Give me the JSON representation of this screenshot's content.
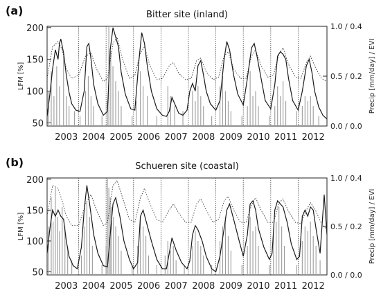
{
  "chart_data": [
    {
      "type": "line",
      "panel_label": "(a)",
      "title": "Bitter site (inland)",
      "ylabel": "LFM [%]",
      "ylabel_right": "Precip [mm/day] / EVI",
      "ylim": [
        45,
        202
      ],
      "xlim": [
        2002.4,
        2012.6
      ],
      "y_ticks": [
        "50",
        "100",
        "150",
        "200"
      ],
      "right_ticks": [
        "0.0 / 0.0",
        "0.5 / 0.2",
        "1.0 / 0.4"
      ],
      "x_ticks": [
        "2003",
        "2004",
        "2005",
        "2006",
        "2007",
        "2008",
        "2009",
        "2010",
        "2011",
        "2012"
      ],
      "year_separators": [
        2003.55,
        2004.55,
        2005.55,
        2006.55,
        2007.55,
        2008.55,
        2009.55,
        2010.55,
        2011.55
      ],
      "grid": false,
      "series": [
        {
          "role": "LFM (solid)",
          "x": [
            2002.4,
            2002.5,
            2002.6,
            2002.7,
            2002.8,
            2002.85,
            2002.9,
            2003.0,
            2003.1,
            2003.2,
            2003.3,
            2003.45,
            2003.6,
            2003.75,
            2003.85,
            2003.92,
            2004.0,
            2004.1,
            2004.25,
            2004.45,
            2004.6,
            2004.7,
            2004.8,
            2004.9,
            2005.0,
            2005.1,
            2005.25,
            2005.45,
            2005.6,
            2005.75,
            2005.85,
            2005.95,
            2006.05,
            2006.2,
            2006.4,
            2006.6,
            2006.75,
            2006.85,
            2006.95,
            2007.05,
            2007.2,
            2007.35,
            2007.5,
            2007.6,
            2007.7,
            2007.8,
            2007.9,
            2008.0,
            2008.1,
            2008.2,
            2008.35,
            2008.55,
            2008.7,
            2008.85,
            2008.95,
            2009.05,
            2009.2,
            2009.35,
            2009.55,
            2009.7,
            2009.85,
            2009.95,
            2010.05,
            2010.2,
            2010.35,
            2010.55,
            2010.7,
            2010.8,
            2010.9,
            2011.0,
            2011.1,
            2011.2,
            2011.35,
            2011.55,
            2011.7,
            2011.85,
            2011.95,
            2012.05,
            2012.15,
            2012.3,
            2012.45,
            2012.6
          ],
          "y": [
            60,
            95,
            135,
            165,
            150,
            175,
            182,
            160,
            125,
            98,
            80,
            70,
            68,
            100,
            170,
            175,
            150,
            110,
            80,
            62,
            68,
            165,
            200,
            185,
            170,
            130,
            95,
            72,
            70,
            150,
            192,
            175,
            140,
            100,
            72,
            62,
            60,
            68,
            90,
            80,
            65,
            62,
            70,
            100,
            112,
            100,
            140,
            148,
            125,
            100,
            80,
            70,
            85,
            150,
            178,
            165,
            125,
            95,
            78,
            120,
            168,
            175,
            155,
            120,
            85,
            72,
            110,
            155,
            162,
            158,
            150,
            120,
            85,
            70,
            100,
            140,
            150,
            130,
            100,
            75,
            62,
            56
          ]
        },
        {
          "role": "EVI (dotted)",
          "x": [
            2002.4,
            2002.6,
            2002.8,
            2002.95,
            2003.1,
            2003.3,
            2003.55,
            2003.8,
            2004.0,
            2004.2,
            2004.45,
            2004.6,
            2004.8,
            2004.95,
            2005.15,
            2005.4,
            2005.6,
            2005.8,
            2005.95,
            2006.15,
            2006.4,
            2006.6,
            2006.85,
            2007.0,
            2007.2,
            2007.45,
            2007.65,
            2007.85,
            2008.0,
            2008.2,
            2008.45,
            2008.65,
            2008.85,
            2009.0,
            2009.2,
            2009.45,
            2009.65,
            2009.85,
            2010.0,
            2010.2,
            2010.45,
            2010.65,
            2010.85,
            2011.0,
            2011.2,
            2011.45,
            2011.65,
            2011.85,
            2012.0,
            2012.2,
            2012.4,
            2012.6
          ],
          "y": [
            120,
            170,
            178,
            165,
            135,
            120,
            125,
            155,
            160,
            135,
            115,
            120,
            175,
            185,
            150,
            120,
            125,
            160,
            170,
            140,
            118,
            120,
            140,
            145,
            128,
            118,
            120,
            148,
            152,
            130,
            118,
            122,
            155,
            162,
            135,
            120,
            120,
            155,
            165,
            140,
            122,
            125,
            158,
            168,
            142,
            122,
            120,
            145,
            155,
            135,
            120,
            115
          ]
        },
        {
          "role": "Precip (grey bars)",
          "x": [
            2002.45,
            2002.55,
            2002.65,
            2002.75,
            2002.85,
            2003.0,
            2003.1,
            2003.2,
            2003.4,
            2003.6,
            2003.8,
            2003.9,
            2004.0,
            2004.1,
            2004.4,
            2004.6,
            2004.65,
            2004.72,
            2004.8,
            2004.9,
            2005.0,
            2005.1,
            2005.5,
            2005.65,
            2005.8,
            2005.9,
            2006.05,
            2006.4,
            2006.8,
            2006.9,
            2007.05,
            2007.35,
            2007.7,
            2007.8,
            2007.9,
            2008.0,
            2008.1,
            2008.4,
            2008.7,
            2008.8,
            2008.9,
            2009.0,
            2009.1,
            2009.5,
            2009.7,
            2009.8,
            2009.9,
            2010.0,
            2010.1,
            2010.5,
            2010.7,
            2010.8,
            2010.9,
            2011.0,
            2011.1,
            2011.5,
            2011.7,
            2011.8,
            2011.9,
            2012.0,
            2012.1,
            2012.3
          ],
          "y": [
            0.35,
            0.55,
            0.3,
            0.6,
            0.4,
            0.7,
            0.3,
            0.2,
            0.15,
            0.1,
            0.35,
            0.5,
            0.3,
            0.2,
            0.1,
            0.25,
            1.0,
            0.75,
            0.6,
            0.45,
            0.35,
            0.2,
            0.1,
            0.25,
            0.55,
            0.4,
            0.3,
            0.1,
            0.4,
            0.3,
            0.2,
            0.15,
            0.35,
            0.25,
            0.4,
            0.3,
            0.2,
            0.1,
            0.4,
            0.5,
            0.35,
            0.25,
            0.15,
            0.1,
            0.2,
            0.55,
            0.3,
            0.35,
            0.2,
            0.1,
            0.2,
            0.4,
            0.3,
            0.45,
            0.25,
            0.15,
            0.2,
            0.3,
            0.25,
            0.3,
            0.2,
            0.1
          ]
        }
      ]
    },
    {
      "type": "line",
      "panel_label": "(b)",
      "title": "Schueren site (coastal)",
      "ylabel": "LFM [%]",
      "ylabel_right": "Precip [mm/day] / EVI",
      "ylim": [
        45,
        202
      ],
      "xlim": [
        2002.4,
        2012.6
      ],
      "y_ticks": [
        "50",
        "100",
        "150",
        "200"
      ],
      "right_ticks": [
        "0.0 / 0.0",
        "0.5 / 0.2",
        "1.0 / 0.4"
      ],
      "x_ticks": [
        "2003",
        "2004",
        "2005",
        "2006",
        "2007",
        "2008",
        "2009",
        "2010",
        "2011",
        "2012"
      ],
      "year_separators": [
        2003.55,
        2004.55,
        2005.55,
        2006.55,
        2007.55,
        2008.55,
        2009.55,
        2010.55,
        2011.55
      ],
      "grid": false,
      "series": [
        {
          "role": "LFM (solid)",
          "x": [
            2002.4,
            2002.5,
            2002.6,
            2002.7,
            2002.8,
            2002.9,
            2003.0,
            2003.1,
            2003.2,
            2003.35,
            2003.5,
            2003.65,
            2003.75,
            2003.85,
            2003.95,
            2004.1,
            2004.25,
            2004.45,
            2004.6,
            2004.7,
            2004.8,
            2004.9,
            2005.05,
            2005.2,
            2005.4,
            2005.55,
            2005.7,
            2005.8,
            2005.9,
            2006.05,
            2006.2,
            2006.4,
            2006.6,
            2006.75,
            2006.85,
            2006.95,
            2007.1,
            2007.3,
            2007.5,
            2007.6,
            2007.7,
            2007.8,
            2007.9,
            2008.05,
            2008.2,
            2008.4,
            2008.55,
            2008.7,
            2008.85,
            2008.95,
            2009.05,
            2009.2,
            2009.4,
            2009.55,
            2009.7,
            2009.8,
            2009.9,
            2010.0,
            2010.1,
            2010.3,
            2010.5,
            2010.6,
            2010.7,
            2010.8,
            2010.9,
            2011.0,
            2011.15,
            2011.3,
            2011.5,
            2011.6,
            2011.7,
            2011.8,
            2011.9,
            2012.0,
            2012.1,
            2012.2,
            2012.35,
            2012.5,
            2012.6
          ],
          "y": [
            80,
            120,
            150,
            140,
            150,
            140,
            135,
            100,
            75,
            60,
            55,
            90,
            150,
            190,
            160,
            110,
            80,
            60,
            58,
            110,
            160,
            170,
            140,
            100,
            70,
            55,
            65,
            140,
            150,
            125,
            100,
            70,
            55,
            55,
            80,
            105,
            85,
            65,
            55,
            68,
            110,
            125,
            118,
            100,
            75,
            55,
            50,
            75,
            120,
            150,
            160,
            135,
            100,
            75,
            110,
            160,
            165,
            150,
            120,
            90,
            70,
            80,
            150,
            165,
            160,
            155,
            130,
            95,
            70,
            75,
            140,
            150,
            140,
            155,
            150,
            120,
            80,
            175,
            110
          ]
        },
        {
          "role": "EVI (dotted)",
          "x": [
            2002.4,
            2002.6,
            2002.8,
            2002.95,
            2003.1,
            2003.3,
            2003.55,
            2003.8,
            2004.0,
            2004.2,
            2004.45,
            2004.6,
            2004.8,
            2004.95,
            2005.15,
            2005.4,
            2005.6,
            2005.8,
            2005.95,
            2006.15,
            2006.4,
            2006.6,
            2006.85,
            2007.0,
            2007.2,
            2007.45,
            2007.65,
            2007.85,
            2008.0,
            2008.2,
            2008.45,
            2008.65,
            2008.85,
            2009.0,
            2009.2,
            2009.45,
            2009.65,
            2009.85,
            2010.0,
            2010.2,
            2010.45,
            2010.65,
            2010.85,
            2011.0,
            2011.2,
            2011.45,
            2011.65,
            2011.85,
            2012.0,
            2012.2,
            2012.4,
            2012.6
          ],
          "y": [
            140,
            190,
            185,
            165,
            140,
            125,
            125,
            160,
            175,
            150,
            125,
            130,
            190,
            198,
            170,
            135,
            130,
            170,
            185,
            160,
            135,
            130,
            150,
            160,
            145,
            130,
            130,
            160,
            168,
            150,
            130,
            135,
            165,
            172,
            150,
            130,
            130,
            158,
            170,
            150,
            130,
            130,
            162,
            168,
            148,
            130,
            128,
            150,
            162,
            148,
            128,
            118
          ]
        },
        {
          "role": "Precip (grey bars)",
          "x": [
            2002.45,
            2002.55,
            2002.62,
            2002.7,
            2002.78,
            2002.85,
            2002.95,
            2003.05,
            2003.15,
            2003.3,
            2003.65,
            2003.75,
            2003.85,
            2003.95,
            2004.05,
            2004.4,
            2004.55,
            2004.6,
            2004.65,
            2004.7,
            2004.75,
            2004.82,
            2004.9,
            2005.0,
            2005.1,
            2005.5,
            2005.7,
            2005.8,
            2005.9,
            2006.0,
            2006.1,
            2006.4,
            2006.7,
            2006.8,
            2006.9,
            2007.0,
            2007.1,
            2007.4,
            2007.7,
            2007.8,
            2007.9,
            2008.0,
            2008.1,
            2008.4,
            2008.7,
            2008.8,
            2008.9,
            2009.0,
            2009.1,
            2009.5,
            2009.7,
            2009.8,
            2009.9,
            2010.0,
            2010.1,
            2010.5,
            2010.65,
            2010.75,
            2010.85,
            2010.95,
            2011.05,
            2011.5,
            2011.7,
            2011.8,
            2011.9,
            2012.0,
            2012.1,
            2012.2,
            2012.35
          ],
          "y": [
            0.5,
            0.8,
            0.55,
            0.9,
            0.6,
            0.45,
            0.7,
            0.5,
            0.3,
            0.15,
            0.2,
            0.5,
            0.75,
            0.6,
            0.3,
            0.1,
            0.3,
            1.0,
            0.9,
            0.8,
            0.7,
            0.6,
            0.5,
            0.4,
            0.25,
            0.1,
            0.3,
            0.6,
            0.5,
            0.4,
            0.2,
            0.1,
            0.2,
            0.35,
            0.25,
            0.3,
            0.15,
            0.1,
            0.3,
            0.45,
            0.35,
            0.3,
            0.2,
            0.1,
            0.35,
            0.5,
            0.6,
            0.4,
            0.25,
            0.1,
            0.3,
            0.6,
            0.45,
            0.5,
            0.3,
            0.1,
            0.4,
            0.55,
            0.7,
            0.5,
            0.3,
            0.1,
            0.35,
            0.5,
            0.45,
            0.55,
            0.4,
            0.3,
            0.15
          ]
        }
      ]
    }
  ]
}
